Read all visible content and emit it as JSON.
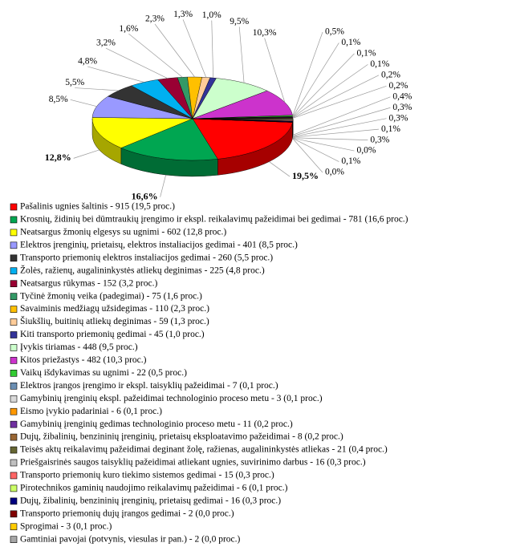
{
  "chart_data": {
    "type": "pie",
    "categories": [
      "Pašalinis ugnies šaltinis - 915 (19,5 proc.)",
      "Krosnių, židinių bei dūmtraukių įrengimo ir ekspl. reikalavimų pažeidimai bei gedimai - 781 (16,6 proc.)",
      "Neatsargus žmonių elgesys su ugnimi - 602 (12,8 proc.)",
      "Elektros įrenginių, prietaisų, elektros instaliacijos gedimai - 401 (8,5 proc.)",
      "Transporto priemonių elektros instaliacijos gedimai - 260 (5,5 proc.)",
      "Žolės, ražienų, augalininkystės atliekų deginimas - 225 (4,8 proc.)",
      "Neatsargus rūkymas - 152 (3,2 proc.)",
      "Tyčinė žmonių veika (padegimai) - 75 (1,6 proc.)",
      "Savaiminis medžiagų užsidegimas - 110 (2,3 proc.)",
      "Šiukšlių, buitinių atliekų deginimas - 59 (1,3 proc.)",
      "Kiti transporto priemonių gedimai - 45 (1,0 proc.)",
      "Įvykis tiriamas - 448 (9,5 proc.)",
      "Kitos priežastys - 482 (10,3 proc.)",
      "Vaikų išdykavimas su ugnimi - 22 (0,5 proc.)",
      "Elektros įrangos įrengimo ir ekspl. taisyklių pažeidimai - 7 (0,1 proc.)",
      "Gamybinių įrenginių ekspl. pažeidimai technologinio proceso metu - 3 (0,1 proc.)",
      "Eismo įvykio padariniai - 6 (0,1 proc.)",
      "Gamybinių įrenginių gedimas technologinio proceso metu - 11 (0,2 proc.)",
      "Dujų, žibalinių, benzininių įrenginių, prietaisų eksploatavimo pažeidimai - 8 (0,2 proc.)",
      "Teisės aktų reikalavimų pažeidimai deginant žolę, ražienas, augalininkystės atliekas - 21 (0,4 proc.)",
      "Priešgaisrinės saugos taisyklių pažeidimai atliekant ugnies, suvirinimo darbus - 16 (0,3 proc.)",
      "Transporto priemonių kuro tiekimo sistemos gedimai - 15 (0,3 proc.)",
      "Pirotechnikos gaminių naudojimo reikalavimų pažeidimai - 6 (0,1 proc.)",
      "Dujų, žibalinių, benzininių įrenginių, prietaisų gedimai - 16 (0,3 proc.)",
      "Transporto priemonių dujų įrangos gedimai - 2 (0,0 proc.)",
      "Sprogimai - 3 (0,1 proc.)",
      "Gamtiniai pavojai (potvynis, viesulas ir pan.) - 2 (0,0 proc.)"
    ],
    "values": [
      19.5,
      16.6,
      12.8,
      8.5,
      5.5,
      4.8,
      3.2,
      1.6,
      2.3,
      1.3,
      1.0,
      9.5,
      10.3,
      0.5,
      0.1,
      0.1,
      0.1,
      0.2,
      0.2,
      0.4,
      0.3,
      0.3,
      0.1,
      0.3,
      0.0,
      0.1,
      0.0
    ],
    "value_labels": [
      "19,5%",
      "16,6%",
      "12,8%",
      "8,5%",
      "5,5%",
      "4,8%",
      "3,2%",
      "1,6%",
      "2,3%",
      "1,3%",
      "1,0%",
      "9,5%",
      "10,3%",
      "0,5%",
      "0,1%",
      "0,1%",
      "0,1%",
      "0,2%",
      "0,2%",
      "0,4%",
      "0,3%",
      "0,3%",
      "0,1%",
      "0,3%",
      "0,0%",
      "0,1%",
      "0,0%"
    ],
    "colors": [
      "#ff0000",
      "#00a651",
      "#ffff00",
      "#9999ff",
      "#333333",
      "#00b0f0",
      "#990033",
      "#339966",
      "#ffc000",
      "#ffcc99",
      "#333399",
      "#ccffcc",
      "#cc33cc",
      "#33cc33",
      "#6b8fb3",
      "#d9d9d9",
      "#ff9900",
      "#7030a0",
      "#996633",
      "#666633",
      "#c0c0c0",
      "#ff6666",
      "#ccff66",
      "#000080",
      "#800000",
      "#ffcc00",
      "#a6a6a6"
    ]
  }
}
